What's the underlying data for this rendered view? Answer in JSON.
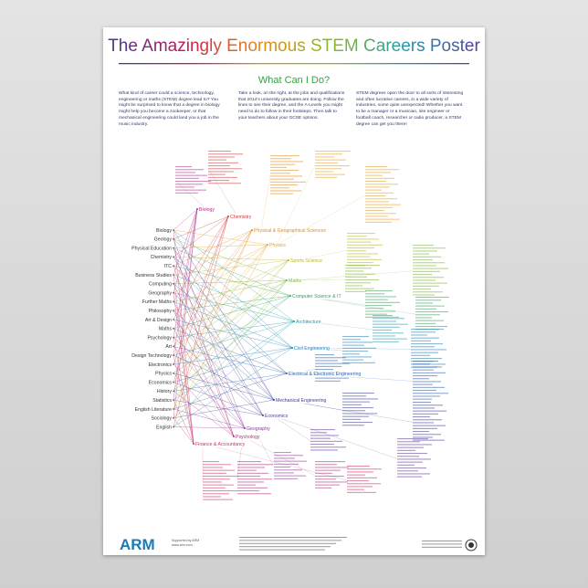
{
  "header": {
    "title": "The Amazingly Enormous STEM Careers Poster",
    "subtitle": "What Can I Do?"
  },
  "intro": [
    "What kind of career could a science, technology, engineering or maths (STEM) degree lead to? You might be surprised to know that a degree in biology might help you become a zookeeper, or that mechanical engineering could land you a job in the music industry.",
    "Take a look, on the right, at the jobs and qualifications that 2014's university graduates are doing. Follow the lines to see their degree, and the A-Levels you might need to do to follow in their footsteps. Then talk to your teachers about your GCSE options.",
    "STEM degrees open the door to all sorts of interesting and often lucrative careers, in a wide variety of industries, some quite unexpected! Whether you want to be a manager or a musician, site engineer or football coach, researcher or radio producer, a STEM degree can get you there!"
  ],
  "subjects": [
    "Biology",
    "Geology",
    "Physical Education",
    "Chemistry",
    "ITC",
    "Business Studies",
    "Computing",
    "Geography",
    "Further Maths",
    "Philosophy",
    "Art & Design",
    "Maths",
    "Psychology",
    "Art",
    "Design Technology",
    "Electronics",
    "Physics",
    "Economics",
    "History",
    "Statistics",
    "English Literature",
    "Sociology",
    "English"
  ],
  "degrees": [
    "Biology",
    "Chemistry",
    "Physical & Geographical Sciences",
    "Physics",
    "Sports Science",
    "Maths",
    "Computer Science & IT",
    "Architecture",
    "Civil Engineering",
    "Electrical & Electronic Engineering",
    "Mechanical Engineering",
    "Economics",
    "Geography",
    "Psychology",
    "Finance & Accountancy"
  ],
  "footer": {
    "logo": "ARM",
    "sponsor": "Supported by ARM",
    "url": "www.arm.com"
  }
}
